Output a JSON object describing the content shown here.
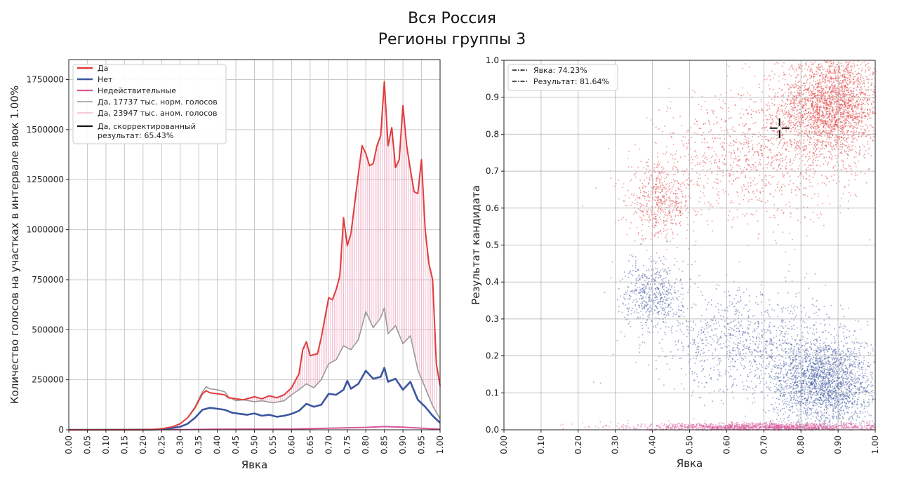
{
  "figure": {
    "title_line1": "Вся Россия",
    "title_line2": "Регионы группы 3"
  },
  "colors": {
    "yes": "#e03c3c",
    "no": "#3b55a0",
    "invalid": "#d8559a",
    "norm": "#999999",
    "anom": "#f2b8cc",
    "corrected": "#111111"
  },
  "chart_data": [
    {
      "type": "line",
      "xlabel": "Явка",
      "ylabel": "Количество голосов на участках в интервале явок 1.00%",
      "xlim": [
        0,
        1
      ],
      "ylim": [
        0,
        1850000
      ],
      "x_ticks": [
        "0.00",
        "0.05",
        "0.10",
        "0.15",
        "0.20",
        "0.25",
        "0.30",
        "0.35",
        "0.40",
        "0.45",
        "0.50",
        "0.55",
        "0.60",
        "0.65",
        "0.70",
        "0.75",
        "0.80",
        "0.85",
        "0.90",
        "0.95",
        "1.00"
      ],
      "y_ticks": [
        "0",
        "250000",
        "500000",
        "750000",
        "1000000",
        "1250000",
        "1500000",
        "1750000"
      ],
      "legend_position": "upper-left",
      "legend": [
        "Да",
        "Нет",
        "Недействительные",
        "Да, 17737 тыс. норм. голосов",
        "Да, 23947 тыс. аном. голосов",
        "Да, скорректированный",
        "результат: 65.43%"
      ],
      "series": [
        {
          "name": "Да",
          "points": [
            [
              0.0,
              0
            ],
            [
              0.2,
              0
            ],
            [
              0.24,
              3000
            ],
            [
              0.26,
              8000
            ],
            [
              0.28,
              15000
            ],
            [
              0.3,
              30000
            ],
            [
              0.32,
              60000
            ],
            [
              0.34,
              110000
            ],
            [
              0.36,
              180000
            ],
            [
              0.37,
              195000
            ],
            [
              0.38,
              185000
            ],
            [
              0.4,
              180000
            ],
            [
              0.42,
              175000
            ],
            [
              0.43,
              160000
            ],
            [
              0.45,
              155000
            ],
            [
              0.47,
              150000
            ],
            [
              0.5,
              165000
            ],
            [
              0.52,
              155000
            ],
            [
              0.54,
              170000
            ],
            [
              0.56,
              160000
            ],
            [
              0.58,
              175000
            ],
            [
              0.6,
              210000
            ],
            [
              0.62,
              280000
            ],
            [
              0.63,
              400000
            ],
            [
              0.64,
              440000
            ],
            [
              0.65,
              370000
            ],
            [
              0.67,
              380000
            ],
            [
              0.68,
              460000
            ],
            [
              0.7,
              660000
            ],
            [
              0.71,
              650000
            ],
            [
              0.72,
              700000
            ],
            [
              0.73,
              770000
            ],
            [
              0.74,
              1060000
            ],
            [
              0.75,
              920000
            ],
            [
              0.76,
              980000
            ],
            [
              0.77,
              1130000
            ],
            [
              0.78,
              1280000
            ],
            [
              0.79,
              1420000
            ],
            [
              0.8,
              1380000
            ],
            [
              0.81,
              1320000
            ],
            [
              0.82,
              1330000
            ],
            [
              0.83,
              1420000
            ],
            [
              0.84,
              1470000
            ],
            [
              0.85,
              1740000
            ],
            [
              0.86,
              1420000
            ],
            [
              0.87,
              1510000
            ],
            [
              0.88,
              1310000
            ],
            [
              0.89,
              1350000
            ],
            [
              0.9,
              1620000
            ],
            [
              0.91,
              1420000
            ],
            [
              0.92,
              1300000
            ],
            [
              0.93,
              1190000
            ],
            [
              0.94,
              1180000
            ],
            [
              0.95,
              1350000
            ],
            [
              0.96,
              1000000
            ],
            [
              0.97,
              830000
            ],
            [
              0.98,
              750000
            ],
            [
              0.99,
              330000
            ],
            [
              1.0,
              220000
            ]
          ]
        },
        {
          "name": "Нет",
          "points": [
            [
              0.0,
              0
            ],
            [
              0.22,
              0
            ],
            [
              0.26,
              3000
            ],
            [
              0.3,
              15000
            ],
            [
              0.32,
              30000
            ],
            [
              0.34,
              60000
            ],
            [
              0.36,
              100000
            ],
            [
              0.38,
              110000
            ],
            [
              0.4,
              105000
            ],
            [
              0.42,
              100000
            ],
            [
              0.44,
              85000
            ],
            [
              0.46,
              80000
            ],
            [
              0.48,
              75000
            ],
            [
              0.5,
              82000
            ],
            [
              0.52,
              70000
            ],
            [
              0.54,
              75000
            ],
            [
              0.56,
              65000
            ],
            [
              0.58,
              70000
            ],
            [
              0.6,
              80000
            ],
            [
              0.62,
              95000
            ],
            [
              0.64,
              130000
            ],
            [
              0.66,
              115000
            ],
            [
              0.68,
              125000
            ],
            [
              0.7,
              180000
            ],
            [
              0.72,
              175000
            ],
            [
              0.74,
              200000
            ],
            [
              0.75,
              245000
            ],
            [
              0.76,
              205000
            ],
            [
              0.78,
              230000
            ],
            [
              0.8,
              295000
            ],
            [
              0.82,
              255000
            ],
            [
              0.84,
              265000
            ],
            [
              0.85,
              310000
            ],
            [
              0.86,
              240000
            ],
            [
              0.88,
              255000
            ],
            [
              0.9,
              200000
            ],
            [
              0.92,
              240000
            ],
            [
              0.94,
              150000
            ],
            [
              0.96,
              115000
            ],
            [
              0.98,
              70000
            ],
            [
              1.0,
              35000
            ]
          ]
        },
        {
          "name": "Недействительные",
          "points": [
            [
              0.0,
              0
            ],
            [
              0.3,
              1000
            ],
            [
              0.4,
              3000
            ],
            [
              0.5,
              3500
            ],
            [
              0.6,
              4000
            ],
            [
              0.7,
              8000
            ],
            [
              0.8,
              12000
            ],
            [
              0.85,
              16000
            ],
            [
              0.9,
              13000
            ],
            [
              0.95,
              8000
            ],
            [
              1.0,
              3000
            ]
          ]
        },
        {
          "name": "Да, 17737 тыс. норм. голосов",
          "points": [
            [
              0.0,
              0
            ],
            [
              0.24,
              3000
            ],
            [
              0.28,
              15000
            ],
            [
              0.3,
              30000
            ],
            [
              0.32,
              60000
            ],
            [
              0.34,
              115000
            ],
            [
              0.36,
              190000
            ],
            [
              0.37,
              215000
            ],
            [
              0.38,
              205000
            ],
            [
              0.4,
              200000
            ],
            [
              0.42,
              190000
            ],
            [
              0.43,
              165000
            ],
            [
              0.45,
              145000
            ],
            [
              0.47,
              150000
            ],
            [
              0.5,
              140000
            ],
            [
              0.52,
              145000
            ],
            [
              0.55,
              135000
            ],
            [
              0.58,
              145000
            ],
            [
              0.6,
              175000
            ],
            [
              0.62,
              200000
            ],
            [
              0.64,
              230000
            ],
            [
              0.66,
              210000
            ],
            [
              0.68,
              250000
            ],
            [
              0.7,
              330000
            ],
            [
              0.72,
              350000
            ],
            [
              0.74,
              420000
            ],
            [
              0.76,
              400000
            ],
            [
              0.78,
              450000
            ],
            [
              0.8,
              590000
            ],
            [
              0.82,
              510000
            ],
            [
              0.84,
              560000
            ],
            [
              0.85,
              610000
            ],
            [
              0.86,
              480000
            ],
            [
              0.88,
              520000
            ],
            [
              0.9,
              430000
            ],
            [
              0.92,
              470000
            ],
            [
              0.94,
              300000
            ],
            [
              0.96,
              210000
            ],
            [
              0.98,
              120000
            ],
            [
              1.0,
              55000
            ]
          ]
        },
        {
          "name": "Да, 23947 тыс. аном. голосов",
          "points": []
        },
        {
          "name": "Да, скорректированный результат: 65.43%",
          "points": []
        }
      ]
    },
    {
      "type": "scatter",
      "xlabel": "Явка",
      "ylabel": "Результат кандидата",
      "xlim": [
        0,
        1
      ],
      "ylim": [
        0,
        1
      ],
      "x_ticks": [
        "0.00",
        "0.10",
        "0.20",
        "0.30",
        "0.40",
        "0.50",
        "0.60",
        "0.70",
        "0.80",
        "0.90",
        "1.00"
      ],
      "y_ticks": [
        "0.0",
        "0.1",
        "0.2",
        "0.3",
        "0.4",
        "0.5",
        "0.6",
        "0.7",
        "0.8",
        "0.9",
        "1.0"
      ],
      "legend_position": "upper-left",
      "legend": [
        "Явка: 74.23%",
        "Результат: 81.64%"
      ],
      "marker": {
        "x": 0.7423,
        "y": 0.8164
      },
      "clusters": [
        {
          "series": "Да",
          "cx": 0.88,
          "cy": 0.88,
          "sx": 0.07,
          "sy": 0.07,
          "n": 2600
        },
        {
          "series": "Да",
          "cx": 0.42,
          "cy": 0.62,
          "sx": 0.045,
          "sy": 0.05,
          "n": 550
        },
        {
          "series": "Да",
          "cx": 0.68,
          "cy": 0.74,
          "sx": 0.13,
          "sy": 0.09,
          "n": 1100
        },
        {
          "series": "Нет",
          "cx": 0.86,
          "cy": 0.13,
          "sx": 0.07,
          "sy": 0.06,
          "n": 2300
        },
        {
          "series": "Нет",
          "cx": 0.4,
          "cy": 0.37,
          "sx": 0.04,
          "sy": 0.045,
          "n": 550
        },
        {
          "series": "Нет",
          "cx": 0.66,
          "cy": 0.24,
          "sx": 0.13,
          "sy": 0.07,
          "n": 1000
        },
        {
          "series": "Недействительные",
          "cx": 0.72,
          "cy": 0.008,
          "sx": 0.18,
          "sy": 0.006,
          "n": 1800
        }
      ]
    }
  ]
}
